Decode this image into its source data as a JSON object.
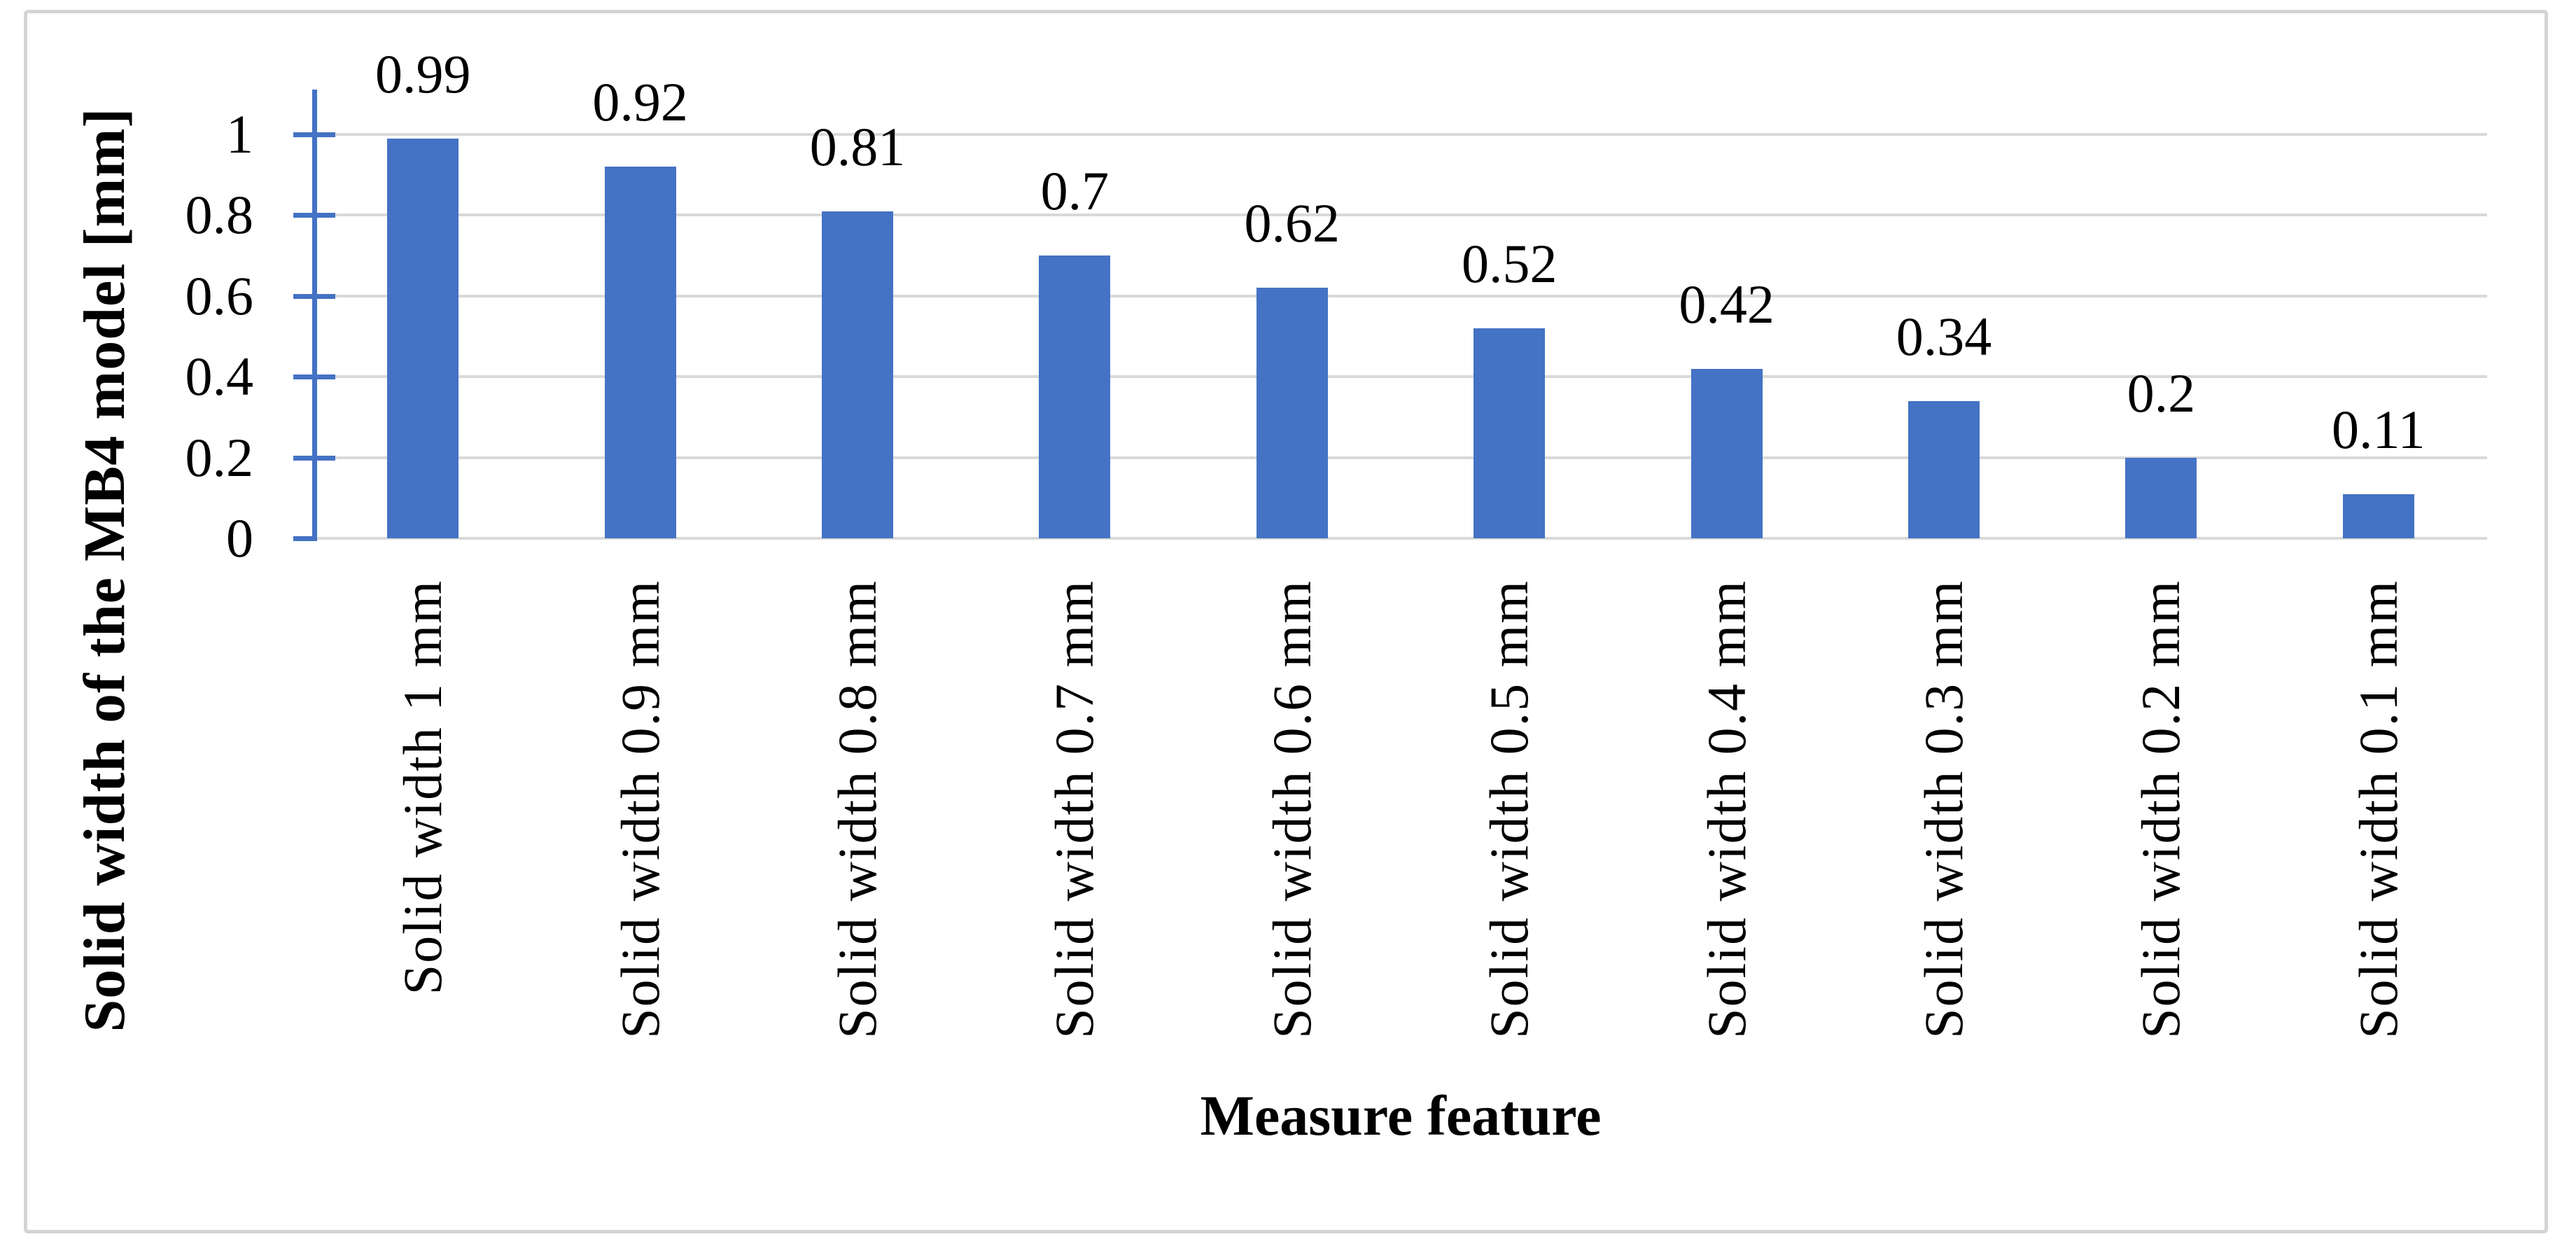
{
  "chart_data": {
    "type": "bar",
    "categories": [
      "Solid width 1 mm",
      "Solid width 0.9 mm",
      "Solid width 0.8 mm",
      "Solid width 0.7 mm",
      "Solid width 0.6 mm",
      "Solid width 0.5 mm",
      "Solid width 0.4 mm",
      "Solid width 0.3 mm",
      "Solid width 0.2 mm",
      "Solid width 0.1 mm"
    ],
    "values": [
      0.99,
      0.92,
      0.81,
      0.7,
      0.62,
      0.52,
      0.42,
      0.34,
      0.2,
      0.11
    ],
    "data_labels": [
      "0.99",
      "0.92",
      "0.81",
      "0.7",
      "0.62",
      "0.52",
      "0.42",
      "0.34",
      "0.2",
      "0.11"
    ],
    "title": "",
    "xlabel": "Measure feature",
    "ylabel": "Solid width of the MB4 model [mm]",
    "yticks": [
      0,
      0.2,
      0.4,
      0.6,
      0.8,
      1
    ],
    "ytick_labels": [
      "0",
      "0.2",
      "0.4",
      "0.6",
      "0.8",
      "1"
    ],
    "ylim": [
      0,
      1.05
    ],
    "grid": true,
    "legend_position": "none",
    "bar_color": "#4472C4",
    "axis_color": "#4472C4",
    "gridline_color": "#D9D9D9",
    "border_color": "#D4D4D4"
  }
}
